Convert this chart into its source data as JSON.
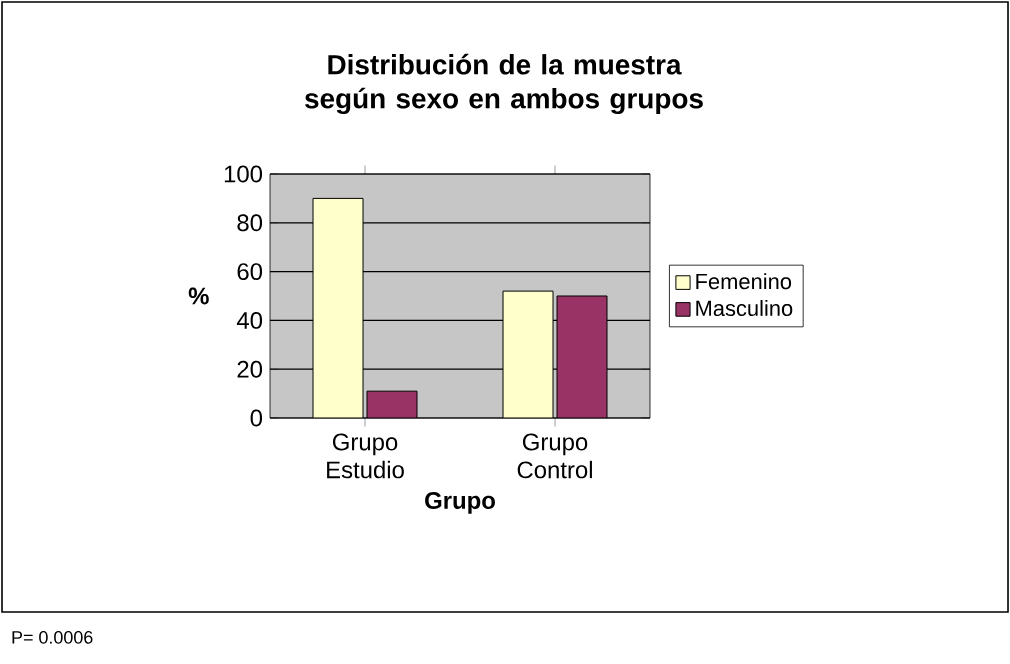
{
  "chart_data": {
    "type": "bar",
    "title": "Distribución de la muestra según sexo en ambos grupos",
    "xlabel": "Grupo",
    "ylabel": "%",
    "categories": [
      "Grupo Estudio",
      "Grupo Control"
    ],
    "series": [
      {
        "name": "Femenino",
        "color": "#ffffcc",
        "values": [
          90,
          52
        ]
      },
      {
        "name": "Masculino",
        "color": "#993366",
        "values": [
          11,
          50
        ]
      }
    ],
    "ylim": [
      0,
      100
    ],
    "yticks": [
      0,
      20,
      40,
      60,
      80,
      100
    ],
    "grid": "y",
    "legend": "right",
    "annotations": [
      "P= 0.0006"
    ]
  }
}
